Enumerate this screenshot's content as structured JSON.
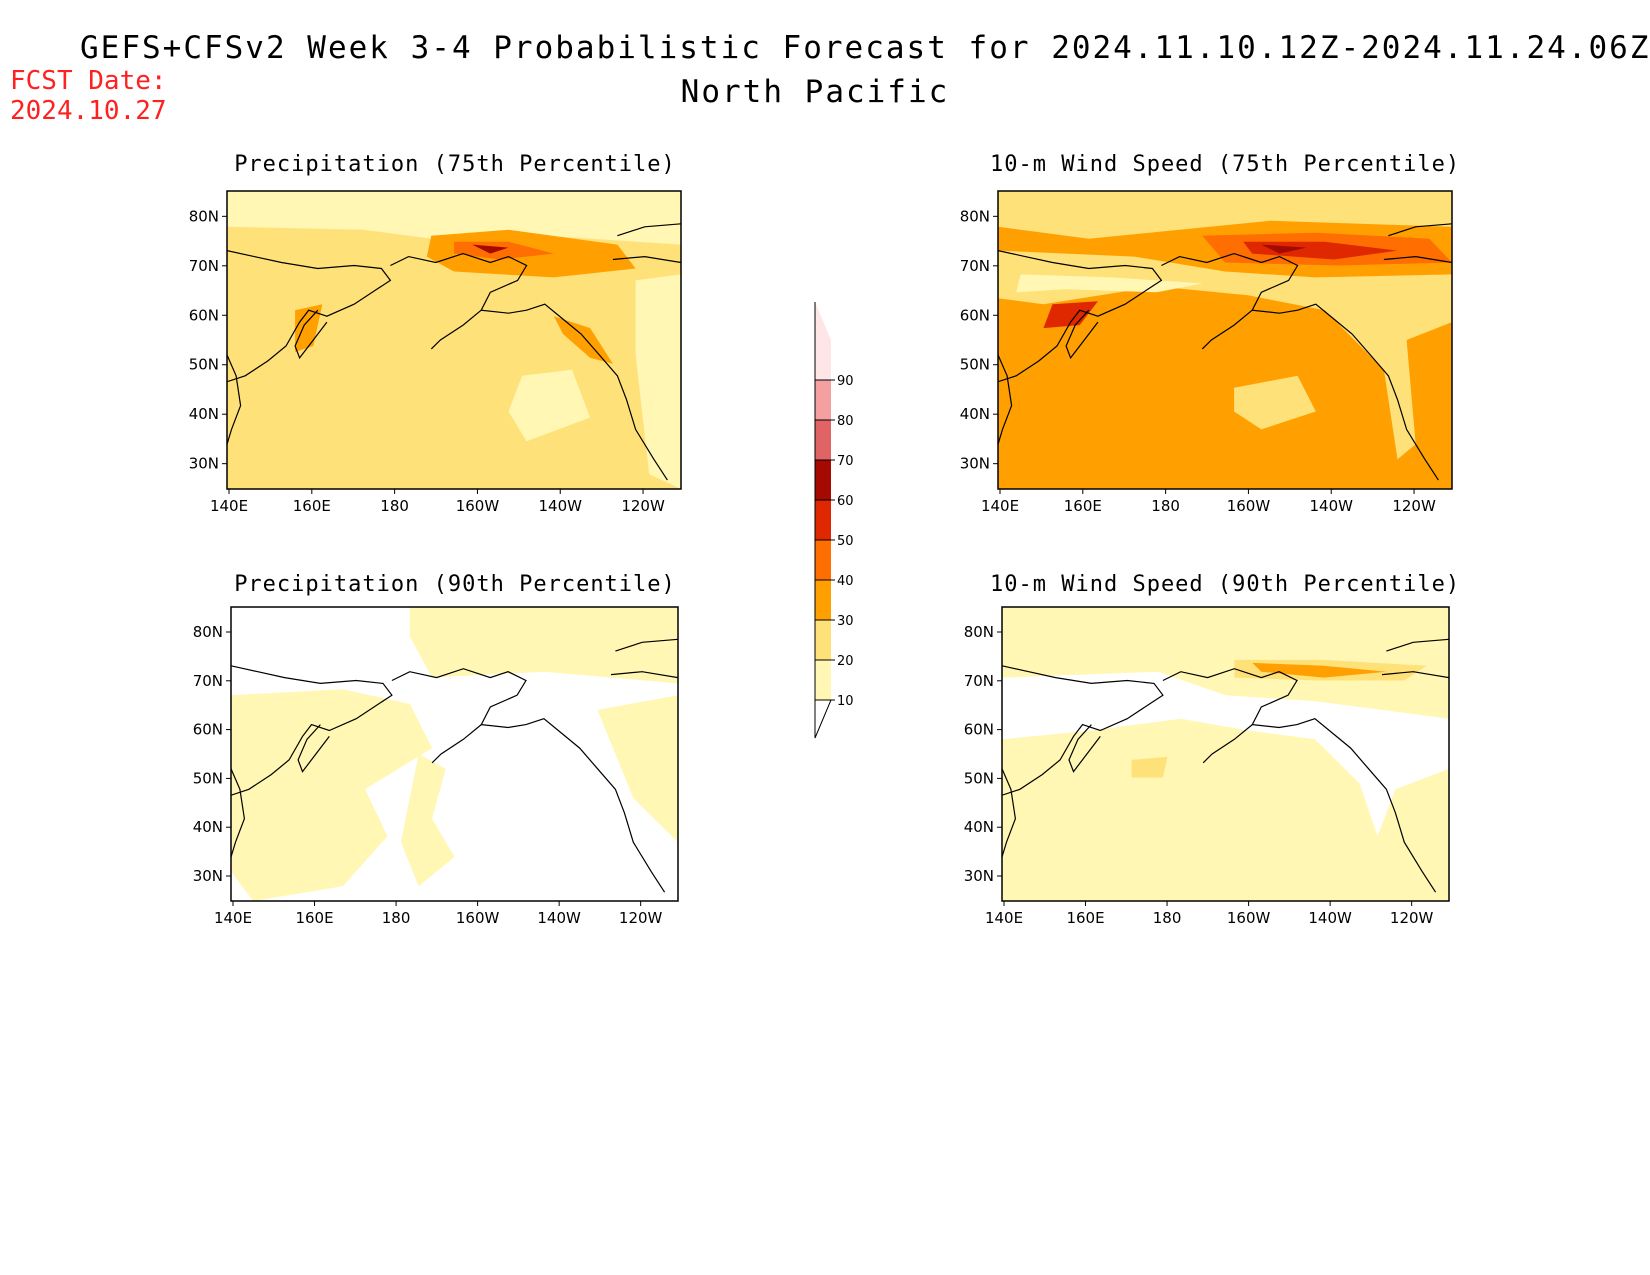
{
  "header": {
    "title": "GEFS+CFSv2 Week 3-4 Probabilistic Forecast for 2024.11.10.12Z-2024.11.24.06Z",
    "subtitle": "North Pacific",
    "fcst_label": "FCST Date:",
    "fcst_date": "2024.10.27"
  },
  "panels": [
    {
      "title": "Precipitation (75th Percentile)",
      "variant": "p75"
    },
    {
      "title": "10-m Wind Speed (75th Percentile)",
      "variant": "w75"
    },
    {
      "title": "Precipitation (90th Percentile)",
      "variant": "p90"
    },
    {
      "title": "10-m Wind Speed (90th Percentile)",
      "variant": "w90"
    }
  ],
  "axes": {
    "x_ticks": [
      "140E",
      "160E",
      "180",
      "160W",
      "140W",
      "120W"
    ],
    "y_ticks": [
      "80N",
      "70N",
      "60N",
      "50N",
      "40N",
      "30N"
    ]
  },
  "colorbar": {
    "levels": [
      "10",
      "20",
      "30",
      "40",
      "50",
      "60",
      "70",
      "80",
      "90"
    ],
    "colors": [
      "#fff7b3",
      "#ffe17a",
      "#ffa000",
      "#ff6e00",
      "#e02800",
      "#a50a00",
      "#e06464",
      "#f5a0a0",
      "#ffe6e6"
    ]
  }
}
